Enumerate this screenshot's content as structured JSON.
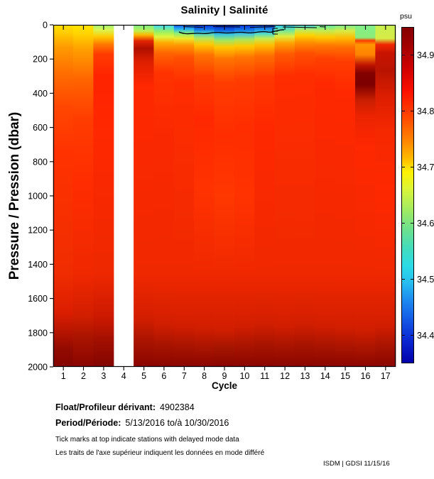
{
  "title": "Salinity | Salinité",
  "chart_data": {
    "type": "heatmap",
    "title": "Salinity | Salinité",
    "xlabel": "Cycle",
    "ylabel": "Pressure / Pression (dbar)",
    "x_ticks": [
      1,
      2,
      3,
      4,
      5,
      6,
      7,
      8,
      9,
      10,
      11,
      12,
      13,
      14,
      15,
      16,
      17
    ],
    "y_ticks": [
      0,
      200,
      400,
      600,
      800,
      1000,
      1200,
      1400,
      1600,
      1800,
      2000
    ],
    "y_range": [
      0,
      2000
    ],
    "x_range_cycles": [
      1,
      17
    ],
    "missing_cycles": [
      4
    ],
    "delayed_mode_tick_cycles": [
      1,
      2,
      3,
      4,
      5,
      6,
      7,
      8,
      9,
      10,
      11,
      12,
      13,
      14,
      15,
      16,
      17
    ],
    "colorbar": {
      "label": "psu",
      "tick_labels": [
        "34.9",
        "34.8",
        "34.7",
        "34.6",
        "34.5",
        "34.4"
      ],
      "tick_values": [
        34.9,
        34.8,
        34.7,
        34.6,
        34.5,
        34.4
      ],
      "value_top": 34.95,
      "value_bottom": 34.35,
      "gradient": [
        [
          0.0,
          "#850000"
        ],
        [
          0.05,
          "#9E0000"
        ],
        [
          0.12,
          "#CD0000"
        ],
        [
          0.19,
          "#FA0F00"
        ],
        [
          0.26,
          "#FF4100"
        ],
        [
          0.33,
          "#FF7D00"
        ],
        [
          0.39,
          "#FFB900"
        ],
        [
          0.43,
          "#FFF000"
        ],
        [
          0.48,
          "#DCF537"
        ],
        [
          0.54,
          "#A5EB5F"
        ],
        [
          0.6,
          "#6EE18C"
        ],
        [
          0.66,
          "#41DCBE"
        ],
        [
          0.71,
          "#2BDCE6"
        ],
        [
          0.76,
          "#28BEF0"
        ],
        [
          0.81,
          "#1E8CF0"
        ],
        [
          0.87,
          "#1459E6"
        ],
        [
          0.93,
          "#0A28D2"
        ],
        [
          1.0,
          "#0000AA"
        ]
      ]
    },
    "surface_contour": {
      "color": "#000000",
      "cycles_span": [
        7,
        13
      ]
    },
    "columns": [
      {
        "cycle": 1,
        "stops": [
          [
            0,
            "#FFE100"
          ],
          [
            45,
            "#FFCD00"
          ],
          [
            130,
            "#FF9B00"
          ],
          [
            280,
            "#FF6E00"
          ],
          [
            480,
            "#FF4600"
          ],
          [
            750,
            "#FF3200"
          ],
          [
            1450,
            "#F02D00"
          ],
          [
            1680,
            "#DC1E00"
          ],
          [
            1800,
            "#B41400"
          ],
          [
            1900,
            "#910A00"
          ],
          [
            2000,
            "#850500"
          ]
        ]
      },
      {
        "cycle": 2,
        "stops": [
          [
            0,
            "#FFE600"
          ],
          [
            55,
            "#FFD200"
          ],
          [
            140,
            "#FFA000"
          ],
          [
            320,
            "#FF6400"
          ],
          [
            550,
            "#FF3C00"
          ],
          [
            900,
            "#FF2D00"
          ],
          [
            1450,
            "#F02800"
          ],
          [
            1700,
            "#D21E00"
          ],
          [
            1830,
            "#A81400"
          ],
          [
            2000,
            "#8A0500"
          ]
        ]
      },
      {
        "cycle": 3,
        "stops": [
          [
            0,
            "#A0F578"
          ],
          [
            30,
            "#DCF550"
          ],
          [
            70,
            "#FFC800"
          ],
          [
            115,
            "#FF7800"
          ],
          [
            170,
            "#FF3C00"
          ],
          [
            300,
            "#FF2300"
          ],
          [
            650,
            "#FF2800"
          ],
          [
            1450,
            "#EE2800"
          ],
          [
            1710,
            "#CC1900"
          ],
          [
            1850,
            "#A00F00"
          ],
          [
            2000,
            "#820500"
          ]
        ]
      },
      {
        "cycle": 4,
        "stops": null,
        "missing": true
      },
      {
        "cycle": 5,
        "stops": [
          [
            0,
            "#78F08C"
          ],
          [
            35,
            "#BEF050"
          ],
          [
            60,
            "#FFB400"
          ],
          [
            95,
            "#E12300"
          ],
          [
            140,
            "#AF0F00"
          ],
          [
            210,
            "#DC1E00"
          ],
          [
            360,
            "#FF2800"
          ],
          [
            1450,
            "#F02800"
          ],
          [
            1720,
            "#D21E00"
          ],
          [
            1850,
            "#A81400"
          ],
          [
            2000,
            "#8A0500"
          ]
        ]
      },
      {
        "cycle": 6,
        "stops": [
          [
            0,
            "#3CDCFF"
          ],
          [
            40,
            "#96F064"
          ],
          [
            70,
            "#E1F53C"
          ],
          [
            105,
            "#FFAA00"
          ],
          [
            165,
            "#FF6400"
          ],
          [
            280,
            "#FF3200"
          ],
          [
            650,
            "#FA2800"
          ],
          [
            1450,
            "#F02800"
          ],
          [
            1750,
            "#D21E00"
          ],
          [
            1870,
            "#A81400"
          ],
          [
            2000,
            "#8A0500"
          ]
        ]
      },
      {
        "cycle": 7,
        "stops": [
          [
            0,
            "#1450F0"
          ],
          [
            25,
            "#28B4F0"
          ],
          [
            50,
            "#8CF078"
          ],
          [
            80,
            "#F0E628"
          ],
          [
            120,
            "#FF9600"
          ],
          [
            190,
            "#FF5000"
          ],
          [
            340,
            "#FF2D00"
          ],
          [
            1450,
            "#F02800"
          ],
          [
            1760,
            "#D21E00"
          ],
          [
            1880,
            "#A81400"
          ],
          [
            2000,
            "#8A0500"
          ]
        ]
      },
      {
        "cycle": 8,
        "stops": [
          [
            0,
            "#0A28DC"
          ],
          [
            28,
            "#1478E6"
          ],
          [
            50,
            "#46D2D2"
          ],
          [
            78,
            "#B4E65A"
          ],
          [
            115,
            "#FFC800"
          ],
          [
            175,
            "#FF7300"
          ],
          [
            300,
            "#FF3C00"
          ],
          [
            550,
            "#FF2800"
          ],
          [
            950,
            "#FF3200"
          ],
          [
            1450,
            "#F02800"
          ],
          [
            1770,
            "#D21E00"
          ],
          [
            1890,
            "#A81400"
          ],
          [
            2000,
            "#8A0500"
          ]
        ]
      },
      {
        "cycle": 9,
        "stops": [
          [
            0,
            "#0520D7"
          ],
          [
            32,
            "#0F64E1"
          ],
          [
            58,
            "#3CC8DC"
          ],
          [
            90,
            "#A0E664"
          ],
          [
            130,
            "#FFC800"
          ],
          [
            200,
            "#FF7300"
          ],
          [
            340,
            "#FF3C00"
          ],
          [
            650,
            "#FF2D00"
          ],
          [
            1000,
            "#FF3700"
          ],
          [
            1450,
            "#F02800"
          ],
          [
            1780,
            "#D21E00"
          ],
          [
            1900,
            "#A01400"
          ],
          [
            2000,
            "#8A0500"
          ]
        ]
      },
      {
        "cycle": 10,
        "stops": [
          [
            0,
            "#0A28DC"
          ],
          [
            30,
            "#1478E6"
          ],
          [
            55,
            "#46C8DC"
          ],
          [
            85,
            "#AAE65A"
          ],
          [
            125,
            "#FFC800"
          ],
          [
            190,
            "#FF7300"
          ],
          [
            320,
            "#FF3C00"
          ],
          [
            600,
            "#FF2D00"
          ],
          [
            1000,
            "#FF3200"
          ],
          [
            1450,
            "#F02800"
          ],
          [
            1760,
            "#D21E00"
          ],
          [
            1880,
            "#A81400"
          ],
          [
            2000,
            "#8A0500"
          ]
        ]
      },
      {
        "cycle": 11,
        "stops": [
          [
            0,
            "#0F32E1"
          ],
          [
            28,
            "#1E96EB"
          ],
          [
            52,
            "#50DCC8"
          ],
          [
            80,
            "#C8EB50"
          ],
          [
            118,
            "#FFBE00"
          ],
          [
            180,
            "#FF6E00"
          ],
          [
            310,
            "#FF3700"
          ],
          [
            600,
            "#FF2800"
          ],
          [
            1450,
            "#F02800"
          ],
          [
            1750,
            "#D21E00"
          ],
          [
            1870,
            "#A81400"
          ],
          [
            2000,
            "#8A0500"
          ]
        ]
      },
      {
        "cycle": 12,
        "stops": [
          [
            0,
            "#28C8F5"
          ],
          [
            35,
            "#78E696"
          ],
          [
            68,
            "#E1EB3C"
          ],
          [
            108,
            "#FFA000"
          ],
          [
            170,
            "#FF5A00"
          ],
          [
            300,
            "#FF2D00"
          ],
          [
            1450,
            "#F02800"
          ],
          [
            1760,
            "#D21E00"
          ],
          [
            1880,
            "#A81400"
          ],
          [
            2000,
            "#8A0500"
          ]
        ]
      },
      {
        "cycle": 13,
        "stops": [
          [
            0,
            "#37DCF5"
          ],
          [
            30,
            "#BEEB5A"
          ],
          [
            62,
            "#FFD200"
          ],
          [
            105,
            "#FF8C00"
          ],
          [
            165,
            "#FF5000"
          ],
          [
            290,
            "#FF2D00"
          ],
          [
            1450,
            "#F02800"
          ],
          [
            1750,
            "#D21E00"
          ],
          [
            1870,
            "#A81400"
          ],
          [
            2000,
            "#8A0500"
          ]
        ]
      },
      {
        "cycle": 14,
        "stops": [
          [
            0,
            "#5AEBAA"
          ],
          [
            35,
            "#C3EB50"
          ],
          [
            72,
            "#FFC800"
          ],
          [
            120,
            "#FF7800"
          ],
          [
            195,
            "#FF4100"
          ],
          [
            340,
            "#FF2800"
          ],
          [
            1450,
            "#F02800"
          ],
          [
            1760,
            "#D21E00"
          ],
          [
            1880,
            "#A81400"
          ],
          [
            2000,
            "#8A0500"
          ]
        ]
      },
      {
        "cycle": 15,
        "stops": [
          [
            0,
            "#78F096"
          ],
          [
            35,
            "#D7EB46"
          ],
          [
            78,
            "#FFB900"
          ],
          [
            130,
            "#FF6E00"
          ],
          [
            215,
            "#FF3C00"
          ],
          [
            400,
            "#FF2800"
          ],
          [
            1450,
            "#F02800"
          ],
          [
            1770,
            "#D21E00"
          ],
          [
            1890,
            "#A81400"
          ],
          [
            2000,
            "#8A0500"
          ]
        ]
      },
      {
        "cycle": 16,
        "stops": [
          [
            0,
            "#82F08C"
          ],
          [
            75,
            "#8CEB78"
          ],
          [
            92,
            "#FF3C00"
          ],
          [
            115,
            "#FF9600"
          ],
          [
            175,
            "#FF8200"
          ],
          [
            235,
            "#BE1400"
          ],
          [
            285,
            "#820000"
          ],
          [
            350,
            "#7D0000"
          ],
          [
            440,
            "#C81E00"
          ],
          [
            530,
            "#EB2300"
          ],
          [
            720,
            "#FF2800"
          ],
          [
            1450,
            "#F02800"
          ],
          [
            1780,
            "#D21E00"
          ],
          [
            1900,
            "#A81400"
          ],
          [
            2000,
            "#8A0500"
          ]
        ]
      },
      {
        "cycle": 17,
        "stops": [
          [
            0,
            "#C8F050"
          ],
          [
            80,
            "#D7EB46"
          ],
          [
            115,
            "#F02800"
          ],
          [
            165,
            "#C81400"
          ],
          [
            270,
            "#B91400"
          ],
          [
            420,
            "#DC1E00"
          ],
          [
            620,
            "#F52800"
          ],
          [
            950,
            "#FF2800"
          ],
          [
            1450,
            "#F02800"
          ],
          [
            1760,
            "#D21E00"
          ],
          [
            1880,
            "#A81400"
          ],
          [
            2000,
            "#8A0500"
          ]
        ]
      }
    ]
  },
  "footer": {
    "float_label": "Float/Profileur dérivant:",
    "float_value": "4902384",
    "period_label": "Period/Période:",
    "period_value": "5/13/2016  to/à  10/30/2016",
    "note_en": "Tick marks at top indicate stations with delayed mode data",
    "note_fr": "Les traits de l'axe supérieur indiquent les données en mode différé",
    "credit": "ISDM | GDSI  11/15/16"
  }
}
